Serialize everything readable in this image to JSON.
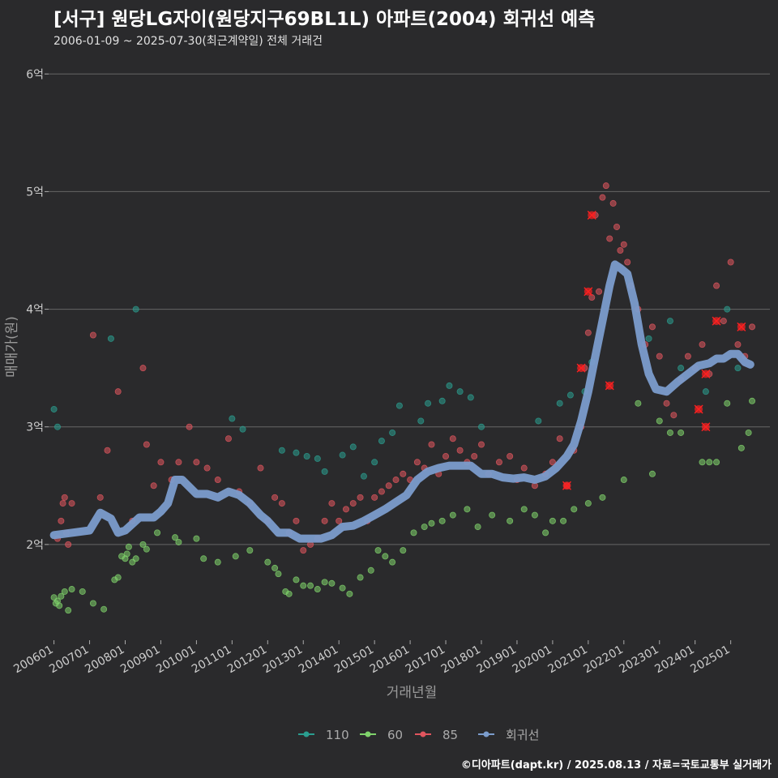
{
  "header": {
    "title": "[서구] 원당LG자이(원당지구69BL1L) 아파트(2004) 회귀선 예측",
    "subtitle": "2006-01-09 ~ 2025-07-30(최근계약일) 전체 거래건"
  },
  "footer": "©디아파트(dapt.kr) / 2025.08.13 / 자료=국토교통부 실거래가",
  "colors": {
    "background": "#2a2a2c",
    "grid": "#666666",
    "s110": "#2a9d8f",
    "s60": "#7fd36b",
    "s85": "#e0555e",
    "regression": "#7b9ccc",
    "highlight": "#ff2020"
  },
  "chart_data": {
    "type": "scatter",
    "title": "[서구] 원당LG자이(원당지구69BL1L) 아파트(2004) 회귀선 예측",
    "xlabel": "거래년월",
    "ylabel": "매매가(원)",
    "xlim": [
      2005.85,
      2026.1
    ],
    "ylim": [
      1.2,
      6.05
    ],
    "y_ticks": [
      2,
      3,
      4,
      5,
      6
    ],
    "y_tick_labels": [
      "2억",
      "3억",
      "4억",
      "5억",
      "6억"
    ],
    "x_ticks": [
      2006,
      2007,
      2008,
      2009,
      2010,
      2011,
      2012,
      2013,
      2014,
      2015,
      2016,
      2017,
      2018,
      2019,
      2020,
      2021,
      2022,
      2023,
      2024,
      2025
    ],
    "x_tick_labels": [
      "200601",
      "200701",
      "200801",
      "200901",
      "201001",
      "201101",
      "201201",
      "201301",
      "201401",
      "201501",
      "201601",
      "201701",
      "201801",
      "201901",
      "202001",
      "202101",
      "202201",
      "202301",
      "202401",
      "202501"
    ],
    "legend": [
      "110",
      "60",
      "85",
      "회귀선"
    ],
    "legend_position": "bottom",
    "series": [
      {
        "name": "110",
        "x": [
          2006.0,
          2006.1,
          2007.6,
          2008.3,
          2011.0,
          2011.3,
          2012.4,
          2012.8,
          2013.1,
          2013.4,
          2013.6,
          2014.1,
          2014.4,
          2014.7,
          2015.0,
          2015.2,
          2015.5,
          2015.7,
          2016.3,
          2016.5,
          2016.9,
          2017.1,
          2017.4,
          2017.7,
          2018.0,
          2019.6,
          2020.2,
          2020.5,
          2020.9,
          2021.1,
          2022.7,
          2023.3,
          2023.6,
          2024.3,
          2024.9,
          2025.2
        ],
        "values": [
          3.15,
          3.0,
          3.75,
          4.0,
          3.07,
          2.98,
          2.8,
          2.78,
          2.75,
          2.73,
          2.62,
          2.76,
          2.83,
          2.58,
          2.7,
          2.88,
          2.95,
          3.18,
          3.05,
          3.2,
          3.22,
          3.35,
          3.3,
          3.25,
          3.0,
          3.05,
          3.2,
          3.27,
          3.3,
          3.55,
          3.75,
          3.9,
          3.5,
          3.3,
          4.0,
          3.5
        ]
      },
      {
        "name": "60",
        "x": [
          2006.0,
          2006.05,
          2006.1,
          2006.15,
          2006.2,
          2006.3,
          2006.4,
          2006.5,
          2006.8,
          2007.1,
          2007.4,
          2007.7,
          2007.8,
          2007.9,
          2008.0,
          2008.05,
          2008.1,
          2008.2,
          2008.3,
          2008.5,
          2008.6,
          2008.9,
          2009.4,
          2009.5,
          2010.0,
          2010.2,
          2010.6,
          2011.1,
          2011.5,
          2012.0,
          2012.2,
          2012.3,
          2012.5,
          2012.6,
          2012.8,
          2013.0,
          2013.2,
          2013.4,
          2013.6,
          2013.8,
          2014.1,
          2014.3,
          2014.6,
          2014.9,
          2015.1,
          2015.3,
          2015.5,
          2015.8,
          2016.1,
          2016.4,
          2016.6,
          2016.9,
          2017.2,
          2017.6,
          2017.9,
          2018.3,
          2018.8,
          2019.2,
          2019.5,
          2019.8,
          2020.0,
          2020.3,
          2020.6,
          2021.0,
          2021.4,
          2022.0,
          2022.4,
          2022.8,
          2023.0,
          2023.3,
          2023.6,
          2024.2,
          2024.4,
          2024.6,
          2024.9,
          2025.3,
          2025.5,
          2025.6
        ],
        "values": [
          1.55,
          1.5,
          1.52,
          1.48,
          1.56,
          1.6,
          1.44,
          1.62,
          1.6,
          1.5,
          1.45,
          1.7,
          1.72,
          1.9,
          1.88,
          1.92,
          1.98,
          1.85,
          1.88,
          2.0,
          1.96,
          2.1,
          2.06,
          2.02,
          2.05,
          1.88,
          1.85,
          1.9,
          1.95,
          1.85,
          1.8,
          1.75,
          1.6,
          1.58,
          1.7,
          1.65,
          1.65,
          1.62,
          1.68,
          1.67,
          1.63,
          1.58,
          1.72,
          1.78,
          1.95,
          1.9,
          1.85,
          1.95,
          2.1,
          2.15,
          2.18,
          2.2,
          2.25,
          2.3,
          2.15,
          2.25,
          2.2,
          2.3,
          2.25,
          2.1,
          2.2,
          2.2,
          2.3,
          2.35,
          2.4,
          2.55,
          3.2,
          2.6,
          3.05,
          2.95,
          2.95,
          2.7,
          2.7,
          2.7,
          3.2,
          2.82,
          2.95,
          3.22
        ]
      },
      {
        "name": "85",
        "x": [
          2006.1,
          2006.2,
          2006.25,
          2006.3,
          2006.35,
          2006.4,
          2006.5,
          2007.1,
          2007.3,
          2007.5,
          2007.8,
          2008.2,
          2008.5,
          2008.6,
          2008.8,
          2009.0,
          2009.3,
          2009.5,
          2009.8,
          2010.0,
          2010.3,
          2010.6,
          2010.9,
          2011.2,
          2011.5,
          2011.8,
          2012.0,
          2012.2,
          2012.4,
          2012.6,
          2012.8,
          2013.0,
          2013.2,
          2013.4,
          2013.6,
          2013.8,
          2014.0,
          2014.2,
          2014.4,
          2014.6,
          2014.8,
          2015.0,
          2015.2,
          2015.4,
          2015.6,
          2015.8,
          2016.0,
          2016.2,
          2016.4,
          2016.6,
          2016.8,
          2017.0,
          2017.2,
          2017.4,
          2017.6,
          2017.8,
          2018.0,
          2018.2,
          2018.5,
          2018.8,
          2019.0,
          2019.2,
          2019.5,
          2019.8,
          2020.0,
          2020.2,
          2020.4,
          2020.6,
          2020.8,
          2020.9,
          2021.0,
          2021.1,
          2021.2,
          2021.3,
          2021.4,
          2021.5,
          2021.6,
          2021.7,
          2021.8,
          2021.9,
          2022.0,
          2022.1,
          2022.2,
          2022.4,
          2022.6,
          2022.8,
          2023.0,
          2023.2,
          2023.4,
          2023.6,
          2023.8,
          2024.0,
          2024.2,
          2024.4,
          2024.6,
          2024.8,
          2025.0,
          2025.2,
          2025.4,
          2025.6
        ],
        "values": [
          2.05,
          2.2,
          2.35,
          2.4,
          2.1,
          2.0,
          2.35,
          3.78,
          2.4,
          2.8,
          3.3,
          2.2,
          3.5,
          2.85,
          2.5,
          2.7,
          2.55,
          2.7,
          3.0,
          2.7,
          2.65,
          2.55,
          2.9,
          2.45,
          2.35,
          2.65,
          2.2,
          2.4,
          2.35,
          2.1,
          2.2,
          1.95,
          2.0,
          2.05,
          2.2,
          2.35,
          2.2,
          2.3,
          2.35,
          2.4,
          2.2,
          2.4,
          2.45,
          2.5,
          2.55,
          2.6,
          2.55,
          2.7,
          2.65,
          2.85,
          2.6,
          2.75,
          2.9,
          2.8,
          2.7,
          2.75,
          2.85,
          2.6,
          2.7,
          2.75,
          2.55,
          2.65,
          2.5,
          2.6,
          2.7,
          2.9,
          2.5,
          2.8,
          3.0,
          3.5,
          3.8,
          4.1,
          4.8,
          4.15,
          4.95,
          5.05,
          4.6,
          4.9,
          4.7,
          4.5,
          4.55,
          4.4,
          4.2,
          4.0,
          3.7,
          3.85,
          3.6,
          3.2,
          3.1,
          3.4,
          3.6,
          3.5,
          3.7,
          3.45,
          4.2,
          3.9,
          4.4,
          3.7,
          3.6,
          3.85
        ]
      },
      {
        "name": "회귀선",
        "x": [
          2006.0,
          2006.5,
          2007.0,
          2007.3,
          2007.6,
          2007.8,
          2008.0,
          2008.4,
          2008.8,
          2009.0,
          2009.2,
          2009.4,
          2009.6,
          2010.0,
          2010.3,
          2010.6,
          2010.9,
          2011.2,
          2011.5,
          2011.8,
          2012.0,
          2012.3,
          2012.6,
          2012.9,
          2013.2,
          2013.5,
          2013.8,
          2014.1,
          2014.4,
          2014.7,
          2015.0,
          2015.3,
          2015.6,
          2015.9,
          2016.2,
          2016.5,
          2016.8,
          2017.1,
          2017.4,
          2017.7,
          2018.0,
          2018.3,
          2018.6,
          2018.9,
          2019.2,
          2019.5,
          2019.8,
          2020.1,
          2020.4,
          2020.6,
          2020.8,
          2021.0,
          2021.2,
          2021.4,
          2021.6,
          2021.75,
          2021.9,
          2022.1,
          2022.3,
          2022.5,
          2022.7,
          2022.9,
          2023.2,
          2023.5,
          2023.8,
          2024.1,
          2024.4,
          2024.6,
          2024.8,
          2025.0,
          2025.2,
          2025.4,
          2025.55
        ],
        "values": [
          2.08,
          2.1,
          2.12,
          2.27,
          2.22,
          2.1,
          2.12,
          2.23,
          2.23,
          2.28,
          2.35,
          2.55,
          2.55,
          2.43,
          2.43,
          2.4,
          2.45,
          2.42,
          2.35,
          2.25,
          2.2,
          2.1,
          2.1,
          2.05,
          2.05,
          2.05,
          2.08,
          2.15,
          2.16,
          2.2,
          2.25,
          2.3,
          2.36,
          2.42,
          2.55,
          2.62,
          2.65,
          2.67,
          2.67,
          2.67,
          2.6,
          2.6,
          2.57,
          2.56,
          2.57,
          2.55,
          2.58,
          2.65,
          2.75,
          2.85,
          3.05,
          3.3,
          3.6,
          3.9,
          4.2,
          4.38,
          4.35,
          4.3,
          4.05,
          3.7,
          3.45,
          3.32,
          3.3,
          3.38,
          3.45,
          3.52,
          3.54,
          3.58,
          3.58,
          3.62,
          3.62,
          3.55,
          3.53
        ]
      }
    ]
  }
}
